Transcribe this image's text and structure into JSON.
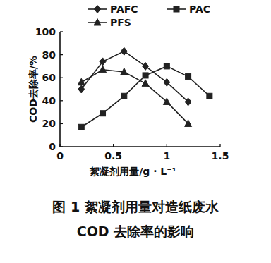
{
  "chart_data": {
    "type": "line",
    "title": "图 1  絮凝剂用量对造纸废水",
    "subtitle": "COD 去除率的影响",
    "x_label": "絮凝剂用量/g · L⁻¹",
    "y_label": "COD去除率/%",
    "series": [
      {
        "name": "PAFC",
        "color": "#222222",
        "marker": "diamond",
        "line_style": "solid",
        "x": [
          0.2,
          0.4,
          0.6,
          0.8,
          1.0,
          1.2
        ],
        "values": [
          50,
          74,
          83,
          70,
          56,
          39
        ]
      },
      {
        "name": "PAC",
        "color": "#222222",
        "marker": "square",
        "line_style": "solid",
        "x": [
          0.2,
          0.4,
          0.6,
          0.8,
          1.0,
          1.2,
          1.4
        ],
        "values": [
          17,
          29,
          44,
          62,
          70,
          61,
          44
        ]
      },
      {
        "name": "PFS",
        "color": "#222222",
        "marker": "triangle",
        "line_style": "solid",
        "x": [
          0.2,
          0.4,
          0.6,
          0.8,
          1.0,
          1.2
        ],
        "values": [
          56,
          67,
          65,
          55,
          39,
          20
        ]
      }
    ],
    "xlim": [
      0,
      1.5
    ],
    "xticks": [
      0,
      0.5,
      1,
      1.5
    ],
    "ylim": [
      0,
      100
    ],
    "yticks": [
      0,
      20,
      40,
      60,
      80,
      100
    ],
    "grid": false,
    "legend": "top"
  }
}
